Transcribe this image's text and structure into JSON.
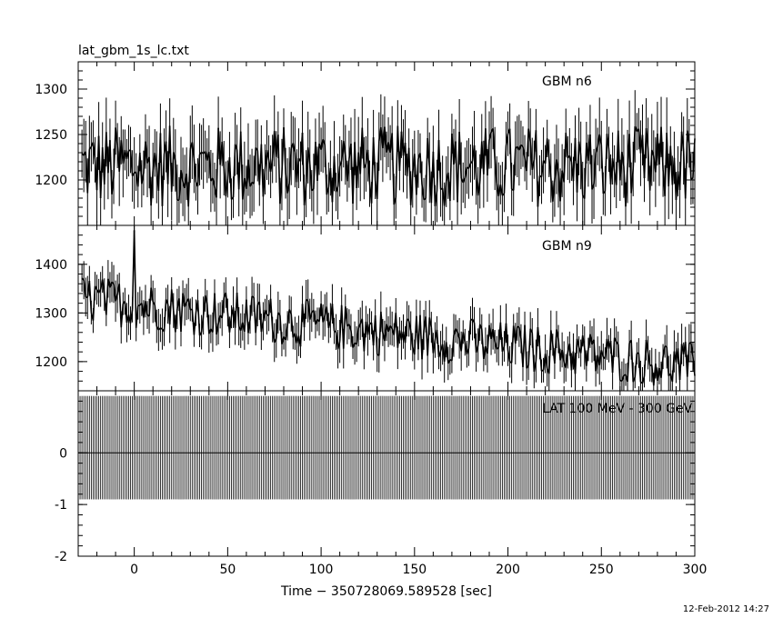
{
  "title": "lat_gbm_1s_lc.txt",
  "timestamp": "12-Feb-2012 14:27",
  "chart_data": [
    {
      "type": "line",
      "series": [
        {
          "name": "GBM n6"
        }
      ],
      "xlim": [
        -30,
        300
      ],
      "ylim": [
        1150,
        1330
      ],
      "y_ticks": [
        1200,
        1250,
        1300
      ],
      "x_ticks": [
        0,
        50,
        100,
        150,
        200,
        250,
        300
      ],
      "baseline": 1215,
      "amplitude": 45,
      "sampling_sec": 1
    },
    {
      "type": "line",
      "series": [
        {
          "name": "GBM n9"
        }
      ],
      "xlim": [
        -30,
        300
      ],
      "ylim": [
        1140,
        1480
      ],
      "y_ticks": [
        1200,
        1300,
        1400
      ],
      "x_ticks": [
        0,
        50,
        100,
        150,
        200,
        250,
        300
      ],
      "baseline_start": 1330,
      "baseline_end": 1190,
      "amplitude": 50,
      "peak": {
        "x": 0,
        "y": 1470
      },
      "sampling_sec": 1
    },
    {
      "type": "line",
      "series": [
        {
          "name": "LAT 100 MeV - 300 GeV"
        }
      ],
      "xlim": [
        -30,
        300
      ],
      "ylim": [
        -2,
        1.2
      ],
      "y_ticks": [
        -2,
        -1,
        0
      ],
      "x_ticks": [
        0,
        50,
        100,
        150,
        200,
        250,
        300
      ],
      "error_low": -0.9,
      "error_high": 1.1,
      "value": 0,
      "xlabel": "Time − 350728069.589528 [sec]"
    }
  ]
}
